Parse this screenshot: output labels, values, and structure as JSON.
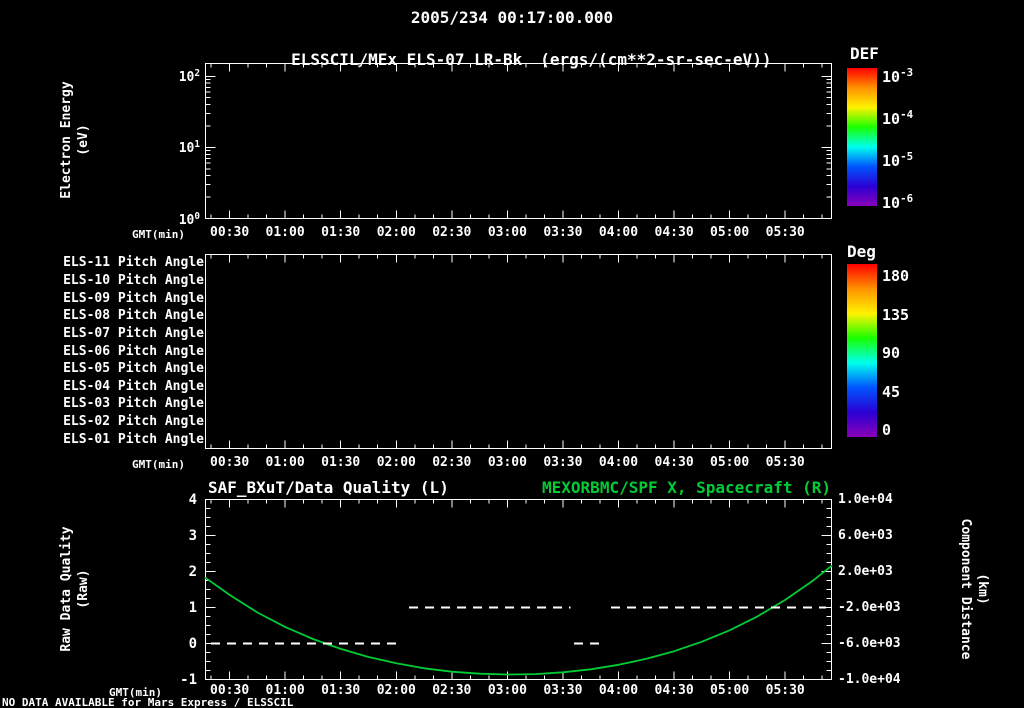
{
  "colors": {
    "background": "#000000",
    "foreground": "#ffffff",
    "green": "#00cc33",
    "rainbow": [
      "#ff0000",
      "#ff9100",
      "#fff200",
      "#1aff00",
      "#00ffee",
      "#0055ff",
      "#2a00d5",
      "#8a00b8"
    ]
  },
  "header": {
    "timestamp": "2005/234 00:17:00.000"
  },
  "footer": {
    "message": "NO DATA AVAILABLE for Mars Express / ELSSCIL"
  },
  "time_axis": {
    "label": "GMT(min)",
    "start": "00:17:00.000",
    "start_min": 17,
    "end_min": 355,
    "minor_step_min": 10,
    "tick_minutes": [
      30,
      60,
      90,
      120,
      150,
      180,
      210,
      240,
      270,
      300,
      330
    ],
    "tick_labels": [
      "00:30",
      "01:00",
      "01:30",
      "02:00",
      "02:30",
      "03:00",
      "03:30",
      "04:00",
      "04:30",
      "05:00",
      "05:30"
    ]
  },
  "chart_data": [
    {
      "id": "electron-energy-spectrogram",
      "type": "heatmap",
      "title": "ELSSCIL/MEx ELS-07 LR-Bk",
      "units_label": "(ergs/(cm**2-sr-sec-eV))",
      "xlabel": "GMT(min)",
      "ylabel": "Electron Energy",
      "ylabel_units": "(eV)",
      "yscale": "log",
      "ytick_labels": [
        "10^0",
        "10^1",
        "10^2"
      ],
      "ytick_exponents": [
        0,
        1,
        2
      ],
      "colorbar": {
        "title": "DEF",
        "scale": "log",
        "tick_labels": [
          "10^-3",
          "10^-4",
          "10^-5",
          "10^-6"
        ]
      },
      "values": []
    },
    {
      "id": "pitch-angle-rows",
      "type": "heatmap",
      "xlabel": "GMT(min)",
      "rows": [
        "ELS-11 Pitch Angle",
        "ELS-10 Pitch Angle",
        "ELS-09 Pitch Angle",
        "ELS-08 Pitch Angle",
        "ELS-07 Pitch Angle",
        "ELS-06 Pitch Angle",
        "ELS-05 Pitch Angle",
        "ELS-04 Pitch Angle",
        "ELS-03 Pitch Angle",
        "ELS-02 Pitch Angle",
        "ELS-01 Pitch Angle"
      ],
      "colorbar": {
        "title": "Deg",
        "range": [
          0,
          180
        ],
        "tick_labels": [
          "180",
          "135",
          "90",
          "45",
          "0"
        ]
      },
      "values": []
    },
    {
      "id": "quality-and-spacecraft-x",
      "type": "line",
      "xlabel": "GMT(min)",
      "left_series_title": "SAF_BXuT/Data Quality (L)",
      "right_series_title": "MEXORBMC/SPF X, Spacecraft (R)",
      "left_ylabel": "Raw Data Quality",
      "left_ylabel_units": "(Raw)",
      "right_ylabel": "Component Distance",
      "right_ylabel_units": "(km)",
      "left_ylim": [
        -1,
        4
      ],
      "left_tick_values": [
        4,
        3,
        2,
        1,
        0,
        -1
      ],
      "left_tick_labels": [
        "4",
        "3",
        "2",
        "1",
        "0",
        "-1"
      ],
      "right_ylim": [
        -10000,
        10000
      ],
      "right_tick_values": [
        10000,
        6000,
        2000,
        -2000,
        -6000,
        -10000
      ],
      "right_tick_labels": [
        "1.0e+04",
        "6.0e+03",
        "2.0e+03",
        "-2.0e+03",
        "-6.0e+03",
        "-1.0e+04"
      ],
      "series": [
        {
          "name": "MEXORBMC/SPF X Spacecraft",
          "axis": "right",
          "style": "solid",
          "color": "green",
          "points_t_min": [
            17,
            30,
            45,
            60,
            75,
            90,
            105,
            120,
            135,
            150,
            165,
            180,
            195,
            210,
            225,
            240,
            255,
            270,
            285,
            300,
            315,
            330,
            345,
            355
          ],
          "points_km": [
            1300,
            -600,
            -2550,
            -4150,
            -5500,
            -6600,
            -7500,
            -8200,
            -8750,
            -9130,
            -9360,
            -9450,
            -9400,
            -9200,
            -8870,
            -8370,
            -7700,
            -6860,
            -5800,
            -4530,
            -2990,
            -1160,
            990,
            2620
          ]
        },
        {
          "name": "SAF_BXuT Raw Data Quality",
          "axis": "left",
          "style": "dashed",
          "color": "white",
          "segments": [
            {
              "value": 0,
              "t_start": 20,
              "t_end": 122
            },
            {
              "value": 1,
              "t_start": 127,
              "t_end": 214
            },
            {
              "value": 0,
              "t_start": 216,
              "t_end": 231
            },
            {
              "value": 1,
              "t_start": 236,
              "t_end": 352
            }
          ]
        }
      ]
    }
  ]
}
